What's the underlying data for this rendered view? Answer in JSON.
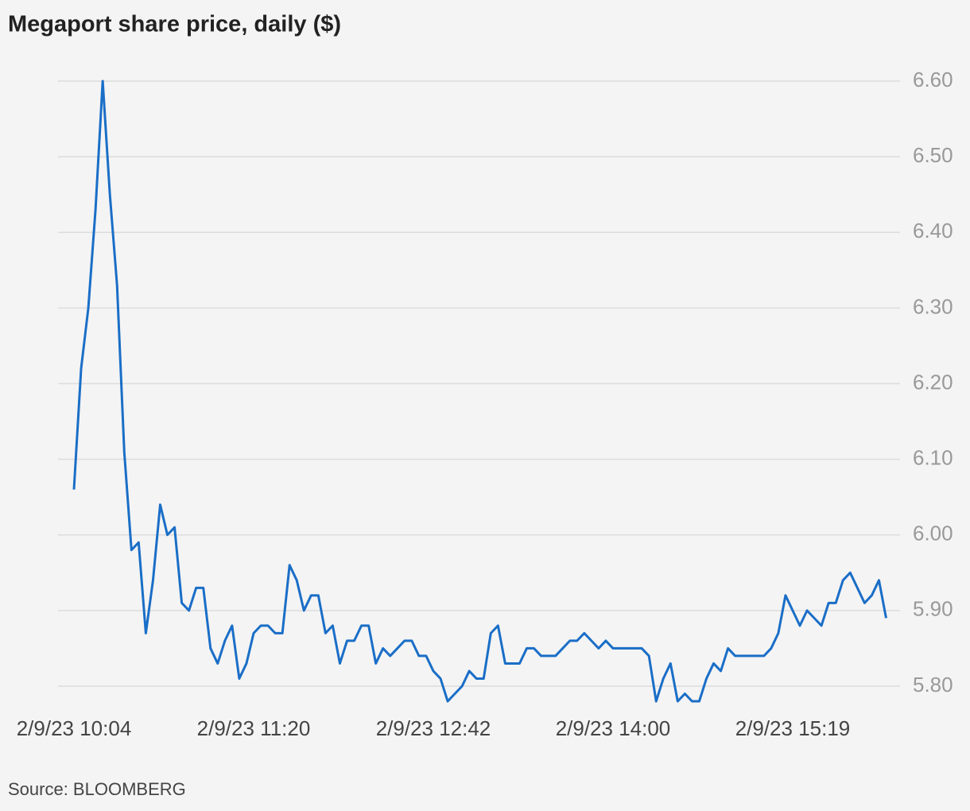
{
  "chart_data": {
    "type": "line",
    "title": "Megaport share price, daily ($)",
    "source": "Source: BLOOMBERG",
    "categories": [
      "2/9/23 10:04",
      null,
      null,
      null,
      null,
      null,
      null,
      null,
      null,
      null,
      null,
      null,
      null,
      null,
      null,
      null,
      null,
      null,
      null,
      null,
      null,
      null,
      null,
      null,
      null,
      "2/9/23 11:20",
      null,
      null,
      null,
      null,
      null,
      null,
      null,
      null,
      null,
      null,
      null,
      null,
      null,
      null,
      null,
      null,
      null,
      null,
      null,
      null,
      null,
      null,
      null,
      null,
      "2/9/23 12:42",
      null,
      null,
      null,
      null,
      null,
      null,
      null,
      null,
      null,
      null,
      null,
      null,
      null,
      null,
      null,
      null,
      null,
      null,
      null,
      null,
      null,
      null,
      null,
      null,
      "2/9/23 14:00",
      null,
      null,
      null,
      null,
      null,
      null,
      null,
      null,
      null,
      null,
      null,
      null,
      null,
      null,
      null,
      null,
      null,
      null,
      null,
      null,
      null,
      null,
      null,
      null,
      "2/9/23 15:19",
      null,
      null,
      null,
      null,
      null,
      null,
      null,
      null,
      null,
      null,
      null,
      null,
      null
    ],
    "series": [
      {
        "name": "Megaport",
        "color": "#1a6ec7",
        "values": [
          6.06,
          6.22,
          6.3,
          6.43,
          6.6,
          6.45,
          6.33,
          6.11,
          5.98,
          5.99,
          5.87,
          5.94,
          6.04,
          6.0,
          6.01,
          5.91,
          5.9,
          5.93,
          5.93,
          5.85,
          5.83,
          5.86,
          5.88,
          5.81,
          5.83,
          5.87,
          5.88,
          5.88,
          5.87,
          5.87,
          5.96,
          5.94,
          5.9,
          5.92,
          5.92,
          5.87,
          5.88,
          5.83,
          5.86,
          5.86,
          5.88,
          5.88,
          5.83,
          5.85,
          5.84,
          5.85,
          5.86,
          5.86,
          5.84,
          5.84,
          5.82,
          5.81,
          5.78,
          5.79,
          5.8,
          5.82,
          5.81,
          5.81,
          5.87,
          5.88,
          5.83,
          5.83,
          5.83,
          5.85,
          5.85,
          5.84,
          5.84,
          5.84,
          5.85,
          5.86,
          5.86,
          5.87,
          5.86,
          5.85,
          5.86,
          5.85,
          5.85,
          5.85,
          5.85,
          5.85,
          5.84,
          5.78,
          5.81,
          5.83,
          5.78,
          5.79,
          5.78,
          5.78,
          5.81,
          5.83,
          5.82,
          5.85,
          5.84,
          5.84,
          5.84,
          5.84,
          5.84,
          5.85,
          5.87,
          5.92,
          5.9,
          5.88,
          5.9,
          5.89,
          5.88,
          5.91,
          5.91,
          5.94,
          5.95,
          5.93,
          5.91,
          5.92,
          5.94,
          5.89
        ]
      }
    ],
    "ylim": [
      5.78,
      6.62
    ],
    "yticks": [
      {
        "value": 5.8,
        "label": "5.80"
      },
      {
        "value": 5.9,
        "label": "5.90"
      },
      {
        "value": 6.0,
        "label": "6.00"
      },
      {
        "value": 6.1,
        "label": "6.10"
      },
      {
        "value": 6.2,
        "label": "6.20"
      },
      {
        "value": 6.3,
        "label": "6.30"
      },
      {
        "value": 6.4,
        "label": "6.40"
      },
      {
        "value": 6.5,
        "label": "6.50"
      },
      {
        "value": 6.6,
        "label": "6.60"
      }
    ],
    "grid": true
  }
}
